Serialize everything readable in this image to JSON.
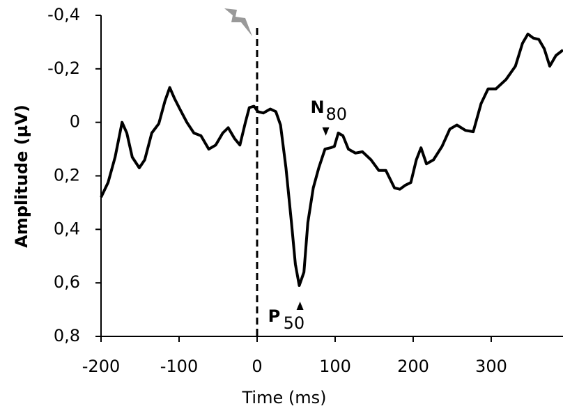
{
  "chart_data": {
    "type": "line",
    "xlabel": "Time (ms)",
    "ylabel": "Amplitude (µV)",
    "x": [
      -200,
      -191,
      -182,
      -173,
      -167,
      -160,
      -151,
      -144,
      -135,
      -126,
      -118,
      -112,
      -106,
      -99,
      -90,
      -81,
      -72,
      -62,
      -53,
      -44,
      -37,
      -29,
      -22,
      -15,
      -10,
      -4,
      1,
      8,
      17,
      24,
      30,
      37,
      44,
      49,
      54,
      60,
      65,
      72,
      79,
      87,
      94,
      99,
      104,
      110,
      117,
      126,
      135,
      146,
      156,
      165,
      176,
      183,
      190,
      197,
      204,
      210,
      217,
      226,
      237,
      247,
      256,
      267,
      277,
      287,
      296,
      306,
      319,
      331,
      340,
      347,
      354,
      361,
      368,
      375,
      383,
      392
    ],
    "series": [
      {
        "color": "#000000",
        "values": [
          0.28,
          0.225,
          0.13,
          0.0,
          0.04,
          0.13,
          0.17,
          0.14,
          0.04,
          0.005,
          -0.08,
          -0.13,
          -0.09,
          -0.05,
          0.0,
          0.04,
          0.05,
          0.1,
          0.085,
          0.04,
          0.02,
          0.06,
          0.085,
          0.0,
          -0.055,
          -0.06,
          -0.04,
          -0.035,
          -0.05,
          -0.04,
          0.01,
          0.17,
          0.375,
          0.53,
          0.61,
          0.56,
          0.375,
          0.245,
          0.17,
          0.1,
          0.095,
          0.09,
          0.04,
          0.05,
          0.1,
          0.115,
          0.11,
          0.14,
          0.18,
          0.18,
          0.245,
          0.25,
          0.235,
          0.225,
          0.14,
          0.095,
          0.155,
          0.14,
          0.09,
          0.025,
          0.01,
          0.03,
          0.035,
          -0.07,
          -0.125,
          -0.125,
          -0.16,
          -0.21,
          -0.295,
          -0.33,
          -0.315,
          -0.31,
          -0.275,
          -0.21,
          -0.25,
          -0.27
        ]
      }
    ],
    "xlim": [
      -200,
      392
    ],
    "xticks": [
      -200,
      -100,
      0,
      100,
      200,
      300
    ],
    "ylim": [
      0.8,
      -0.4
    ],
    "y_inverted": true,
    "yticks": [
      {
        "value": -0.4,
        "label": "-0,4"
      },
      {
        "value": -0.2,
        "label": "-0,2"
      },
      0,
      {
        "value": 0.2,
        "label": "0,2"
      },
      {
        "value": 0.4,
        "label": "0,4"
      },
      {
        "value": 0.6,
        "label": "0,6"
      },
      {
        "value": 0.8,
        "label": "0,8"
      }
    ],
    "stimulus_x": 0,
    "annotations": [
      {
        "text": "N",
        "sub": "80",
        "x": 88,
        "y": 0.05,
        "dir": "down"
      },
      {
        "text": "P",
        "sub": "50",
        "x": 55,
        "y": 0.67,
        "dir": "up"
      }
    ]
  }
}
